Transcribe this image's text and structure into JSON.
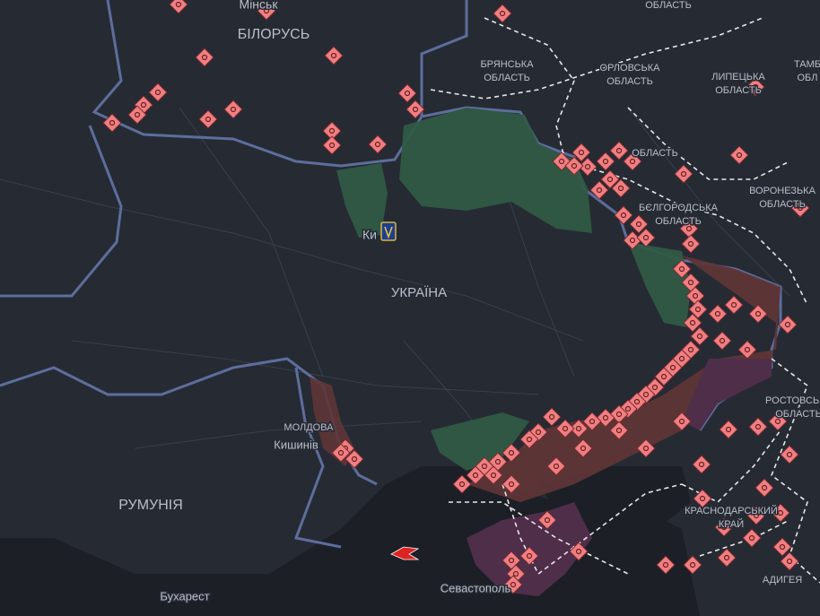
{
  "map": {
    "labels": [
      {
        "text": "ОБЛАСТЬ"
      },
      {
        "text": "Мінськ"
      },
      {
        "text": "БІЛОРУСЬ"
      },
      {
        "text": "БРЯНСЬКА"
      },
      {
        "text": "ОБЛАСТЬ"
      },
      {
        "text": "ОРЛОВСЬКА"
      },
      {
        "text": "ОБЛАСТЬ"
      },
      {
        "text": "ЛИПЕЦЬКА"
      },
      {
        "text": "ОБЛАСТЬ"
      },
      {
        "text": "ТАМБ"
      },
      {
        "text": "ОБЛ"
      },
      {
        "text": "ОБЛАСТЬ"
      },
      {
        "text": "БЄЛГОРОДСЬКА"
      },
      {
        "text": "ОБЛАСТЬ"
      },
      {
        "text": "ВОРОНЕЗЬКА"
      },
      {
        "text": "ОБЛАСТЬ"
      },
      {
        "text": "Ки"
      },
      {
        "text": "УКРАЇНА"
      },
      {
        "text": "МОЛДОВА"
      },
      {
        "text": "Кишинів"
      },
      {
        "text": "РУМУНІЯ"
      },
      {
        "text": "Бухарест"
      },
      {
        "text": "Севастополь"
      },
      {
        "text": "РОСТОВСЬКА"
      },
      {
        "text": "ОБЛАСТЬ"
      },
      {
        "text": "КРАСНОДАРСЬКИЙ"
      },
      {
        "text": "КРАЙ"
      },
      {
        "text": "АДИГЕЯ"
      }
    ]
  }
}
